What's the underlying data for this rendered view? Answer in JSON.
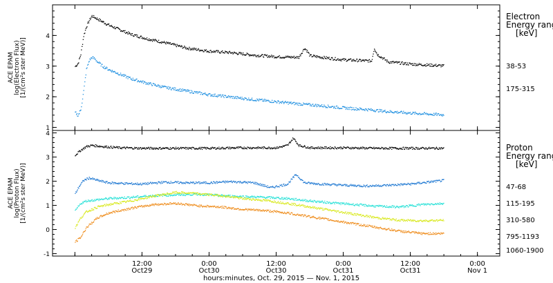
{
  "chart_data": [
    {
      "type": "scatter",
      "ylabel": [
        "ACE EPAM",
        "log(Electron Flux)",
        "[1/(cm²s ster MeV)]"
      ],
      "ylim": [
        0.9,
        5.0
      ],
      "yticks": [
        1,
        2,
        3,
        4
      ],
      "legend_title": [
        "Electron",
        "Energy range",
        "[keV]"
      ],
      "series": [
        {
          "name": "38-53",
          "color": "#000000",
          "x_hours": [
            0.0,
            0.5,
            1.0,
            1.5,
            2.0,
            2.5,
            3.0,
            3.5,
            4.0,
            5.0,
            6.0,
            8.0,
            10.0,
            13.0,
            16.0,
            20.0,
            24.0,
            28.0,
            32.0,
            36.0,
            40.0,
            41.0,
            41.5,
            42.0,
            45.0,
            48.0,
            53.0,
            53.5,
            54.0,
            56.0,
            60.0,
            66.0
          ],
          "values": [
            3.0,
            3.1,
            3.4,
            4.0,
            4.3,
            4.5,
            4.65,
            4.6,
            4.55,
            4.45,
            4.35,
            4.2,
            4.05,
            3.9,
            3.78,
            3.6,
            3.5,
            3.45,
            3.37,
            3.32,
            3.3,
            3.6,
            3.5,
            3.35,
            3.28,
            3.22,
            3.18,
            3.6,
            3.4,
            3.15,
            3.08,
            3.02
          ]
        },
        {
          "name": "175-315",
          "color": "#1e8fe0",
          "x_hours": [
            0.0,
            0.5,
            1.0,
            1.5,
            2.0,
            2.5,
            3.0,
            3.5,
            4.0,
            5.0,
            6.0,
            8.0,
            10.0,
            13.0,
            16.0,
            20.0,
            24.0,
            28.0,
            32.0,
            36.0,
            40.0,
            44.0,
            48.0,
            52.0,
            56.0,
            60.0,
            66.0
          ],
          "values": [
            1.5,
            1.4,
            1.6,
            2.2,
            2.9,
            3.2,
            3.3,
            3.25,
            3.15,
            3.0,
            2.9,
            2.75,
            2.6,
            2.45,
            2.32,
            2.2,
            2.08,
            2.0,
            1.92,
            1.85,
            1.78,
            1.72,
            1.65,
            1.6,
            1.53,
            1.48,
            1.42
          ]
        }
      ]
    },
    {
      "type": "scatter",
      "ylabel": [
        "ACE EPAM",
        "log(Proton Flux)",
        "[1/(cm²s ster MeV)]"
      ],
      "ylim": [
        -1.1,
        4.1
      ],
      "yticks": [
        -1,
        0,
        1,
        2,
        3,
        4
      ],
      "legend_title": [
        "Proton",
        "Energy range",
        "[keV]"
      ],
      "series": [
        {
          "name": "47-68",
          "color": "#000000",
          "x_hours": [
            0.0,
            1.0,
            2.0,
            3.0,
            5.0,
            8.0,
            12.0,
            18.0,
            24.0,
            30.0,
            36.0,
            38.0,
            39.0,
            40.0,
            42.0,
            48.0,
            54.0,
            60.0,
            66.0
          ],
          "values": [
            3.1,
            3.3,
            3.45,
            3.5,
            3.45,
            3.4,
            3.38,
            3.38,
            3.38,
            3.4,
            3.4,
            3.5,
            3.8,
            3.5,
            3.4,
            3.4,
            3.38,
            3.38,
            3.38
          ]
        },
        {
          "name": "115-195",
          "color": "#1e78d2",
          "x_hours": [
            0.0,
            0.7,
            1.5,
            2.5,
            4.0,
            6.0,
            9.0,
            12.0,
            16.0,
            20.0,
            24.0,
            28.0,
            32.0,
            35.0,
            38.0,
            39.5,
            41.0,
            44.0,
            48.0,
            52.0,
            56.0,
            60.0,
            64.0,
            66.0
          ],
          "values": [
            1.5,
            1.8,
            2.05,
            2.15,
            2.05,
            1.95,
            1.92,
            1.9,
            1.98,
            1.95,
            1.95,
            2.0,
            1.95,
            1.75,
            1.9,
            2.3,
            1.95,
            1.9,
            1.85,
            1.82,
            1.85,
            1.9,
            2.0,
            2.05
          ]
        },
        {
          "name": "310-580",
          "color": "#22e0d6",
          "x_hours": [
            0.0,
            1.0,
            2.0,
            4.0,
            6.0,
            10.0,
            14.0,
            18.0,
            22.0,
            26.0,
            30.0,
            34.0,
            38.0,
            42.0,
            46.0,
            50.0,
            54.0,
            58.0,
            62.0,
            66.0
          ],
          "values": [
            0.8,
            1.1,
            1.2,
            1.25,
            1.3,
            1.35,
            1.42,
            1.45,
            1.48,
            1.42,
            1.38,
            1.35,
            1.3,
            1.2,
            1.12,
            1.05,
            0.98,
            0.95,
            1.05,
            1.1
          ]
        },
        {
          "name": "795-1193",
          "color": "#d8e81a",
          "x_hours": [
            0.0,
            1.0,
            2.0,
            4.0,
            6.0,
            10.0,
            14.0,
            18.0,
            22.0,
            26.0,
            30.0,
            34.0,
            38.0,
            42.0,
            46.0,
            50.0,
            54.0,
            58.0,
            62.0,
            66.0
          ],
          "values": [
            0.1,
            0.5,
            0.75,
            0.95,
            1.05,
            1.2,
            1.4,
            1.55,
            1.5,
            1.42,
            1.3,
            1.22,
            1.1,
            0.95,
            0.8,
            0.65,
            0.5,
            0.4,
            0.38,
            0.4
          ]
        },
        {
          "name": "1060-1900",
          "color": "#ee8a18",
          "x_hours": [
            0.0,
            1.0,
            2.0,
            4.0,
            6.0,
            8.0,
            10.0,
            14.0,
            18.0,
            22.0,
            26.0,
            30.0,
            34.0,
            38.0,
            42.0,
            46.0,
            50.0,
            54.0,
            58.0,
            62.0,
            66.0
          ],
          "values": [
            -0.5,
            -0.3,
            0.1,
            0.5,
            0.7,
            0.8,
            0.9,
            1.05,
            1.1,
            1.0,
            0.95,
            0.85,
            0.8,
            0.7,
            0.55,
            0.4,
            0.25,
            0.1,
            -0.05,
            -0.15,
            -0.15
          ]
        }
      ]
    }
  ],
  "x_axis": {
    "ticks": [
      {
        "hours": 12,
        "time": "12:00",
        "date": "Oct29"
      },
      {
        "hours": 24,
        "time": "0:00",
        "date": "Oct30"
      },
      {
        "hours": 36,
        "time": "12:00",
        "date": "Oct30"
      },
      {
        "hours": 48,
        "time": "0:00",
        "date": "Oct31"
      },
      {
        "hours": 60,
        "time": "12:00",
        "date": "Oct31"
      },
      {
        "hours": 72,
        "time": "0:00",
        "date": "Nov 1"
      }
    ],
    "label": "hours:minutes, Oct. 29, 2015 — Nov. 1, 2015"
  }
}
